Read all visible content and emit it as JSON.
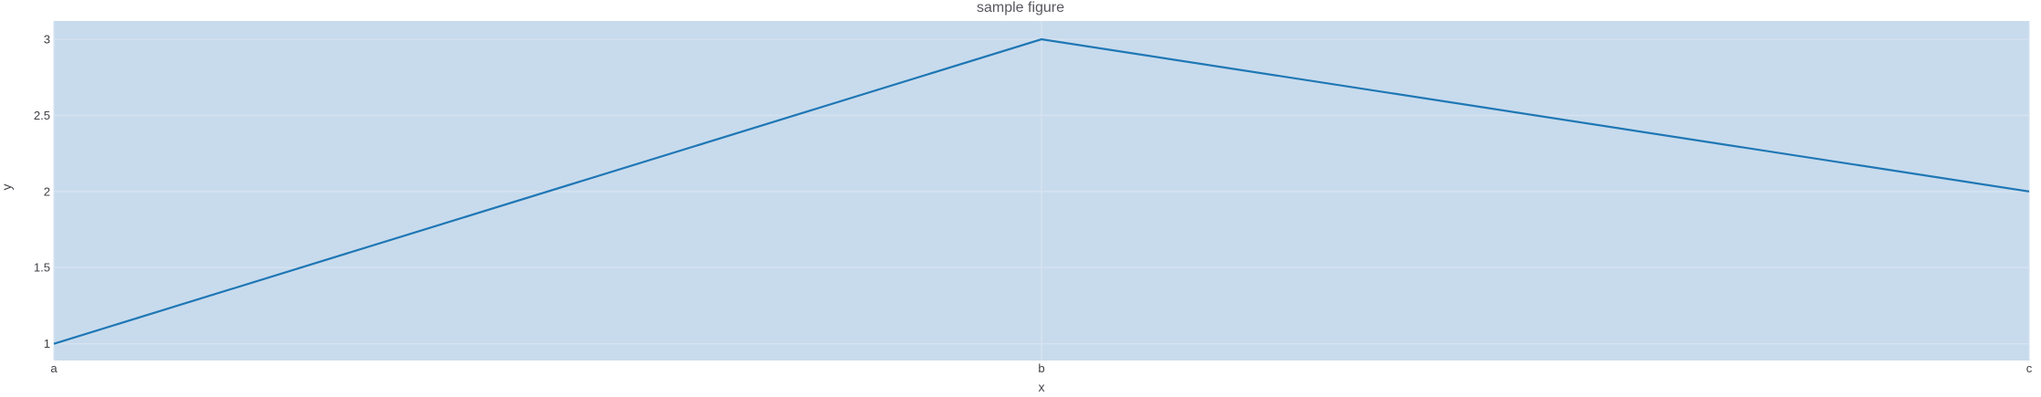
{
  "chart_data": {
    "type": "line",
    "title": "sample figure",
    "xlabel": "x",
    "ylabel": "y",
    "categories": [
      "a",
      "b",
      "c"
    ],
    "series": [
      {
        "name": "y",
        "values": [
          1,
          3,
          2
        ]
      }
    ],
    "yticks": [
      1,
      1.5,
      2,
      2.5,
      3
    ],
    "ytick_labels": [
      "1",
      "1.5",
      "2",
      "2.5",
      "3"
    ],
    "ylim": [
      0.89,
      3.12
    ],
    "grid": true,
    "legend_visible": false,
    "colors": {
      "line": "#1f77b4",
      "plot_background": "#c8dbed",
      "gridline": "#d7e3f0",
      "page_background": "#ffffff",
      "tick_text": "#3f4045",
      "title_text": "#57575e"
    }
  }
}
